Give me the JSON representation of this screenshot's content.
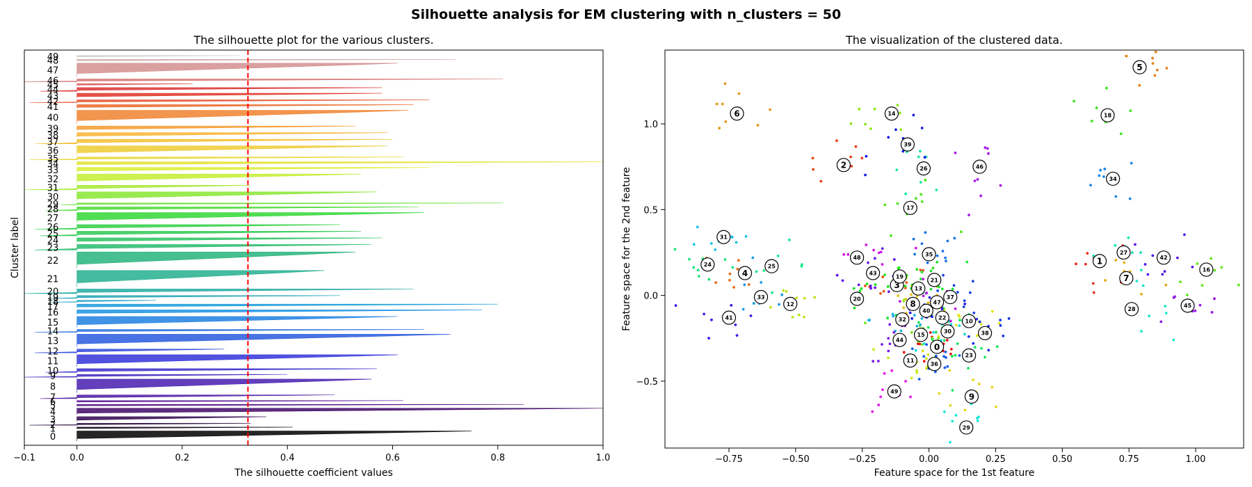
{
  "suptitle": "Silhouette analysis for EM clustering with n_clusters = 50",
  "chart_data": [
    {
      "type": "bar",
      "title": "The silhouette plot for the various clusters.",
      "xlabel": "The silhouette coefficient values",
      "ylabel": "Cluster label",
      "xlim": [
        -0.1,
        1.0
      ],
      "xticks": [
        "−0.1",
        "0.0",
        "0.2",
        "0.4",
        "0.6",
        "0.8",
        "1.0"
      ],
      "xtick_values": [
        -0.1,
        0.0,
        0.2,
        0.4,
        0.6,
        0.8,
        1.0
      ],
      "average_silhouette": 0.325,
      "average_line_color": "#ff0000",
      "clusters": [
        {
          "label": "0",
          "size": 11,
          "max": 0.75,
          "min": 0.0
        },
        {
          "label": "1",
          "size": 2,
          "max": 0.41,
          "min": 0.0
        },
        {
          "label": "2",
          "size": 2,
          "max": 0.33,
          "min": -0.09
        },
        {
          "label": "3",
          "size": 5,
          "max": 0.36,
          "min": 0.0
        },
        {
          "label": "4",
          "size": 7,
          "max": 1.0,
          "min": 0.0
        },
        {
          "label": "5",
          "size": 2,
          "max": 0.85,
          "min": 0.0
        },
        {
          "label": "6",
          "size": 2,
          "max": 0.62,
          "min": 0.0
        },
        {
          "label": "7",
          "size": 4,
          "max": 0.49,
          "min": -0.07
        },
        {
          "label": "8",
          "size": 15,
          "max": 0.56,
          "min": 0.0
        },
        {
          "label": "9",
          "size": 3,
          "max": 0.4,
          "min": -0.1
        },
        {
          "label": "10",
          "size": 4,
          "max": 0.57,
          "min": -0.06
        },
        {
          "label": "11",
          "size": 13,
          "max": 0.61,
          "min": 0.0
        },
        {
          "label": "12",
          "size": 4,
          "max": 0.28,
          "min": -0.08
        },
        {
          "label": "13",
          "size": 14,
          "max": 0.71,
          "min": 0.0
        },
        {
          "label": "14",
          "size": 3,
          "max": 0.66,
          "min": -0.08
        },
        {
          "label": "15",
          "size": 12,
          "max": 0.61,
          "min": 0.0
        },
        {
          "label": "16",
          "size": 5,
          "max": 0.77,
          "min": 0.0
        },
        {
          "label": "17",
          "size": 4,
          "max": 0.8,
          "min": 0.0
        },
        {
          "label": "18",
          "size": 2,
          "max": 0.15,
          "min": -0.05
        },
        {
          "label": "19",
          "size": 3,
          "max": 0.5,
          "min": -0.05
        },
        {
          "label": "20",
          "size": 5,
          "max": 0.64,
          "min": -0.1
        },
        {
          "label": "21",
          "size": 18,
          "max": 0.47,
          "min": 0.0
        },
        {
          "label": "22",
          "size": 18,
          "max": 0.53,
          "min": 0.0
        },
        {
          "label": "23",
          "size": 6,
          "max": 0.56,
          "min": -0.08
        },
        {
          "label": "24",
          "size": 5,
          "max": 0.58,
          "min": 0.0
        },
        {
          "label": "25",
          "size": 5,
          "max": 0.54,
          "min": -0.07
        },
        {
          "label": "26",
          "size": 5,
          "max": 0.5,
          "min": -0.08
        },
        {
          "label": "27",
          "size": 11,
          "max": 0.66,
          "min": 0.0
        },
        {
          "label": "28",
          "size": 4,
          "max": 0.65,
          "min": -0.06
        },
        {
          "label": "29",
          "size": 2,
          "max": 0.81,
          "min": -0.03
        },
        {
          "label": "30",
          "size": 10,
          "max": 0.57,
          "min": 0.0
        },
        {
          "label": "31",
          "size": 5,
          "max": 0.33,
          "min": -0.1
        },
        {
          "label": "32",
          "size": 10,
          "max": 0.54,
          "min": 0.0
        },
        {
          "label": "33",
          "size": 5,
          "max": 0.67,
          "min": 0.0
        },
        {
          "label": "34",
          "size": 4,
          "max": 1.0,
          "min": 0.0
        },
        {
          "label": "35",
          "size": 3,
          "max": 0.62,
          "min": -0.09
        },
        {
          "label": "36",
          "size": 10,
          "max": 0.59,
          "min": 0.0
        },
        {
          "label": "37",
          "size": 5,
          "max": 0.6,
          "min": -0.08
        },
        {
          "label": "38",
          "size": 5,
          "max": 0.59,
          "min": 0.0
        },
        {
          "label": "39",
          "size": 5,
          "max": 0.53,
          "min": 0.0
        },
        {
          "label": "40",
          "size": 15,
          "max": 0.63,
          "min": 0.0
        },
        {
          "label": "41",
          "size": 4,
          "max": 0.64,
          "min": 0.0
        },
        {
          "label": "42",
          "size": 3,
          "max": 0.67,
          "min": -0.09
        },
        {
          "label": "43",
          "size": 5,
          "max": 0.58,
          "min": 0.0
        },
        {
          "label": "44",
          "size": 4,
          "max": 0.58,
          "min": -0.07
        },
        {
          "label": "45",
          "size": 2,
          "max": 0.22,
          "min": 0.0
        },
        {
          "label": "46",
          "size": 3,
          "max": 0.81,
          "min": -0.1
        },
        {
          "label": "47",
          "size": 15,
          "max": 0.61,
          "min": 0.0
        },
        {
          "label": "48",
          "size": 2,
          "max": 0.72,
          "min": 0.0
        },
        {
          "label": "49",
          "size": 2,
          "max": 0.31,
          "min": 0.0
        }
      ]
    },
    {
      "type": "scatter",
      "title": "The visualization of the clustered data.",
      "xlabel": "Feature space for the 1st feature",
      "ylabel": "Feature space for the 2nd feature",
      "xlim": [
        -0.99,
        1.18
      ],
      "ylim": [
        -0.89,
        1.43
      ],
      "xticks": [
        "−0.75",
        "−0.50",
        "−0.25",
        "0.00",
        "0.25",
        "0.50",
        "0.75",
        "1.00"
      ],
      "xtick_values": [
        -0.75,
        -0.5,
        -0.25,
        0.0,
        0.25,
        0.5,
        0.75,
        1.0
      ],
      "yticks": [
        "−0.5",
        "0.0",
        "0.5",
        "1.0"
      ],
      "ytick_values": [
        -0.5,
        0.0,
        0.5,
        1.0
      ],
      "centers": [
        {
          "label": "0",
          "x": 0.03,
          "y": -0.3
        },
        {
          "label": "1",
          "x": 0.64,
          "y": 0.2
        },
        {
          "label": "2",
          "x": -0.32,
          "y": 0.76
        },
        {
          "label": "3",
          "x": -0.12,
          "y": 0.06
        },
        {
          "label": "4",
          "x": -0.69,
          "y": 0.13
        },
        {
          "label": "5",
          "x": 0.79,
          "y": 1.33
        },
        {
          "label": "6",
          "x": -0.72,
          "y": 1.06
        },
        {
          "label": "7",
          "x": 0.74,
          "y": 0.1
        },
        {
          "label": "8",
          "x": -0.06,
          "y": -0.05
        },
        {
          "label": "9",
          "x": 0.16,
          "y": -0.59
        },
        {
          "label": "10",
          "x": 0.15,
          "y": -0.15
        },
        {
          "label": "11",
          "x": -0.07,
          "y": -0.38
        },
        {
          "label": "12",
          "x": -0.52,
          "y": -0.05
        },
        {
          "label": "13",
          "x": -0.04,
          "y": 0.04
        },
        {
          "label": "14",
          "x": -0.14,
          "y": 1.06
        },
        {
          "label": "15",
          "x": -0.03,
          "y": -0.23
        },
        {
          "label": "16",
          "x": 1.04,
          "y": 0.15
        },
        {
          "label": "17",
          "x": -0.07,
          "y": 0.51
        },
        {
          "label": "18",
          "x": 0.67,
          "y": 1.05
        },
        {
          "label": "19",
          "x": -0.11,
          "y": 0.11
        },
        {
          "label": "20",
          "x": -0.27,
          "y": -0.02
        },
        {
          "label": "21",
          "x": 0.02,
          "y": 0.09
        },
        {
          "label": "22",
          "x": 0.05,
          "y": -0.13
        },
        {
          "label": "23",
          "x": 0.15,
          "y": -0.35
        },
        {
          "label": "24",
          "x": -0.83,
          "y": 0.18
        },
        {
          "label": "25",
          "x": -0.59,
          "y": 0.17
        },
        {
          "label": "26",
          "x": -0.02,
          "y": 0.74
        },
        {
          "label": "27",
          "x": 0.73,
          "y": 0.25
        },
        {
          "label": "28",
          "x": 0.76,
          "y": -0.08
        },
        {
          "label": "29",
          "x": 0.14,
          "y": -0.77
        },
        {
          "label": "30",
          "x": 0.07,
          "y": -0.21
        },
        {
          "label": "31",
          "x": -0.77,
          "y": 0.34
        },
        {
          "label": "32",
          "x": -0.1,
          "y": -0.14
        },
        {
          "label": "33",
          "x": -0.63,
          "y": -0.01
        },
        {
          "label": "34",
          "x": 0.69,
          "y": 0.68
        },
        {
          "label": "35",
          "x": 0.0,
          "y": 0.24
        },
        {
          "label": "36",
          "x": 0.02,
          "y": -0.4
        },
        {
          "label": "37",
          "x": 0.08,
          "y": -0.01
        },
        {
          "label": "38",
          "x": 0.21,
          "y": -0.22
        },
        {
          "label": "39",
          "x": -0.08,
          "y": 0.88
        },
        {
          "label": "40",
          "x": -0.01,
          "y": -0.09
        },
        {
          "label": "41",
          "x": -0.75,
          "y": -0.13
        },
        {
          "label": "42",
          "x": 0.88,
          "y": 0.22
        },
        {
          "label": "43",
          "x": -0.21,
          "y": 0.13
        },
        {
          "label": "44",
          "x": -0.11,
          "y": -0.26
        },
        {
          "label": "45",
          "x": 0.97,
          "y": -0.06
        },
        {
          "label": "46",
          "x": 0.19,
          "y": 0.75
        },
        {
          "label": "47",
          "x": 0.03,
          "y": -0.04
        },
        {
          "label": "48",
          "x": -0.27,
          "y": 0.22
        },
        {
          "label": "49",
          "x": -0.13,
          "y": -0.56
        }
      ]
    }
  ]
}
